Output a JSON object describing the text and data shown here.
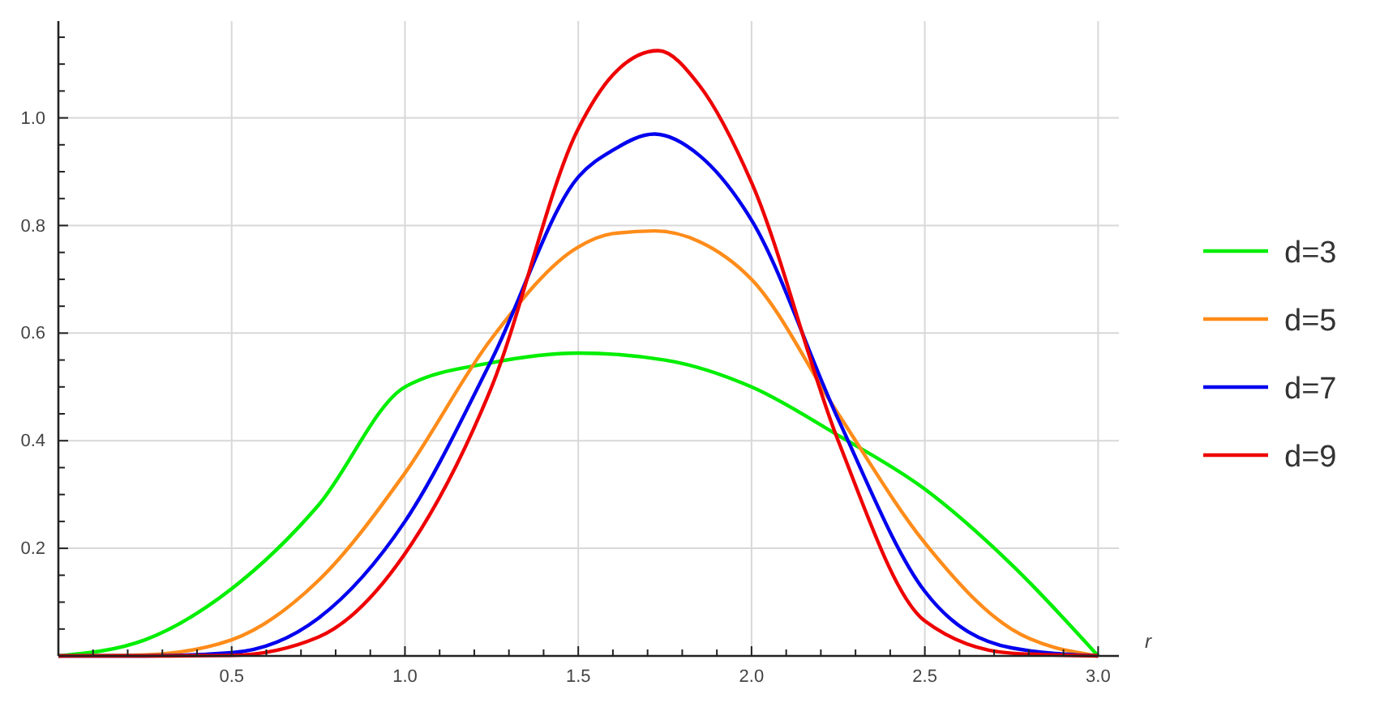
{
  "chart_data": {
    "type": "line",
    "xlabel": "r",
    "xlim": [
      0,
      3.06
    ],
    "ylim": [
      0,
      1.18
    ],
    "xticks": [
      {
        "value": 0.1,
        "label": null
      },
      {
        "value": 0.2,
        "label": null
      },
      {
        "value": 0.3,
        "label": null
      },
      {
        "value": 0.4,
        "label": null
      },
      {
        "value": 0.5,
        "label": "0.5"
      },
      {
        "value": 0.6,
        "label": null
      },
      {
        "value": 0.7,
        "label": null
      },
      {
        "value": 0.8,
        "label": null
      },
      {
        "value": 0.9,
        "label": null
      },
      {
        "value": 1,
        "label": "1.0"
      },
      {
        "value": 1.1,
        "label": null
      },
      {
        "value": 1.2,
        "label": null
      },
      {
        "value": 1.3,
        "label": null
      },
      {
        "value": 1.4,
        "label": null
      },
      {
        "value": 1.5,
        "label": "1.5"
      },
      {
        "value": 1.6,
        "label": null
      },
      {
        "value": 1.7,
        "label": null
      },
      {
        "value": 1.8,
        "label": null
      },
      {
        "value": 1.9,
        "label": null
      },
      {
        "value": 2,
        "label": "2.0"
      },
      {
        "value": 2.1,
        "label": null
      },
      {
        "value": 2.2,
        "label": null
      },
      {
        "value": 2.3,
        "label": null
      },
      {
        "value": 2.4,
        "label": null
      },
      {
        "value": 2.5,
        "label": "2.5"
      },
      {
        "value": 2.6,
        "label": null
      },
      {
        "value": 2.7,
        "label": null
      },
      {
        "value": 2.8,
        "label": null
      },
      {
        "value": 2.9,
        "label": null
      },
      {
        "value": 3,
        "label": "3.0"
      }
    ],
    "yticks": [
      {
        "value": 0.05,
        "label": null
      },
      {
        "value": 0.1,
        "label": null
      },
      {
        "value": 0.15,
        "label": null
      },
      {
        "value": 0.2,
        "label": "0.2"
      },
      {
        "value": 0.25,
        "label": null
      },
      {
        "value": 0.3,
        "label": null
      },
      {
        "value": 0.35,
        "label": null
      },
      {
        "value": 0.4,
        "label": "0.4"
      },
      {
        "value": 0.45,
        "label": null
      },
      {
        "value": 0.5,
        "label": null
      },
      {
        "value": 0.55,
        "label": null
      },
      {
        "value": 0.6,
        "label": "0.6"
      },
      {
        "value": 0.65,
        "label": null
      },
      {
        "value": 0.7,
        "label": null
      },
      {
        "value": 0.75,
        "label": null
      },
      {
        "value": 0.8,
        "label": "0.8"
      },
      {
        "value": 0.85,
        "label": null
      },
      {
        "value": 0.9,
        "label": null
      },
      {
        "value": 0.95,
        "label": null
      },
      {
        "value": 1,
        "label": "1.0"
      },
      {
        "value": 1.05,
        "label": null
      },
      {
        "value": 1.1,
        "label": null
      },
      {
        "value": 1.15,
        "label": null
      }
    ],
    "grid": true,
    "legend": "right",
    "line_style": "solid",
    "marker": "none",
    "series": [
      {
        "name": "d=3",
        "color": "#00ee00",
        "x": [
          0,
          0.25,
          0.5,
          0.75,
          1,
          1.25,
          1.5,
          1.75,
          2,
          2.25,
          2.5,
          2.75,
          3
        ],
        "values": [
          0,
          0.03,
          0.125,
          0.28,
          0.5,
          0.545,
          0.563,
          0.55,
          0.5,
          0.41,
          0.31,
          0.17,
          0
        ]
      },
      {
        "name": "d=5",
        "color": "#ff8c1a",
        "x": [
          0,
          0.25,
          0.5,
          0.75,
          1,
          1.25,
          1.5,
          1.6,
          1.72,
          1.85,
          2,
          2.25,
          2.5,
          2.75,
          3
        ],
        "values": [
          0,
          0.002,
          0.03,
          0.14,
          0.34,
          0.59,
          0.76,
          0.785,
          0.79,
          0.77,
          0.7,
          0.45,
          0.21,
          0.05,
          0
        ]
      },
      {
        "name": "d=7",
        "color": "#0000ee",
        "x": [
          0,
          0.25,
          0.5,
          0.75,
          1,
          1.25,
          1.5,
          1.6,
          1.72,
          1.85,
          2,
          2.25,
          2.5,
          2.75,
          3
        ],
        "values": [
          0,
          0,
          0.006,
          0.07,
          0.25,
          0.55,
          0.89,
          0.94,
          0.97,
          0.93,
          0.81,
          0.44,
          0.12,
          0.015,
          0
        ]
      },
      {
        "name": "d=9",
        "color": "#ee0000",
        "x": [
          0,
          0.25,
          0.5,
          0.75,
          1,
          1.25,
          1.5,
          1.6,
          1.73,
          1.85,
          2,
          2.25,
          2.5,
          2.75,
          3
        ],
        "values": [
          0,
          0,
          0.001,
          0.035,
          0.19,
          0.5,
          0.98,
          1.08,
          1.125,
          1.06,
          0.88,
          0.4,
          0.065,
          0.005,
          0
        ]
      }
    ]
  }
}
